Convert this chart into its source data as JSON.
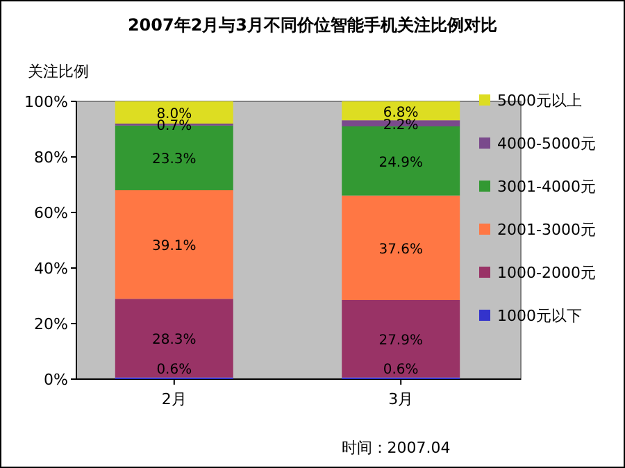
{
  "chart_data": {
    "type": "bar",
    "title": "2007年2月与3月不同价位智能手机关注比例对比",
    "ylabel": "关注比例",
    "categories": [
      "2月",
      "3月"
    ],
    "stacked": true,
    "ylim": [
      0,
      100
    ],
    "yticks": [
      {
        "value": 0,
        "label": "0%"
      },
      {
        "value": 20,
        "label": "20%"
      },
      {
        "value": 40,
        "label": "40%"
      },
      {
        "value": 60,
        "label": "60%"
      },
      {
        "value": 80,
        "label": "80%"
      },
      {
        "value": 100,
        "label": "100%"
      }
    ],
    "legend": "right",
    "annotations": [
      "时间：2007.04"
    ],
    "series": [
      {
        "name": "1000元以下",
        "color": "#3333cc",
        "values": [
          0.6,
          0.6
        ],
        "value_labels": [
          "0.6%",
          "0.6%"
        ]
      },
      {
        "name": "1000-2000元",
        "color": "#993366",
        "values": [
          28.3,
          27.9
        ],
        "value_labels": [
          "28.3%",
          "27.9%"
        ]
      },
      {
        "name": "2001-3000元",
        "color": "#ff7744",
        "values": [
          39.1,
          37.6
        ],
        "value_labels": [
          "39.1%",
          "37.6%"
        ]
      },
      {
        "name": "3001-4000元",
        "color": "#339933",
        "values": [
          23.3,
          24.9
        ],
        "value_labels": [
          "23.3%",
          "24.9%"
        ]
      },
      {
        "name": "4000-5000元",
        "color": "#7a4a8c",
        "values": [
          0.7,
          2.2
        ],
        "value_labels": [
          "0.7%",
          "2.2%"
        ]
      },
      {
        "name": "5000元以上",
        "color": "#dddd22",
        "values": [
          8.0,
          6.8
        ],
        "value_labels": [
          "8.0%",
          "6.8%"
        ]
      }
    ]
  }
}
